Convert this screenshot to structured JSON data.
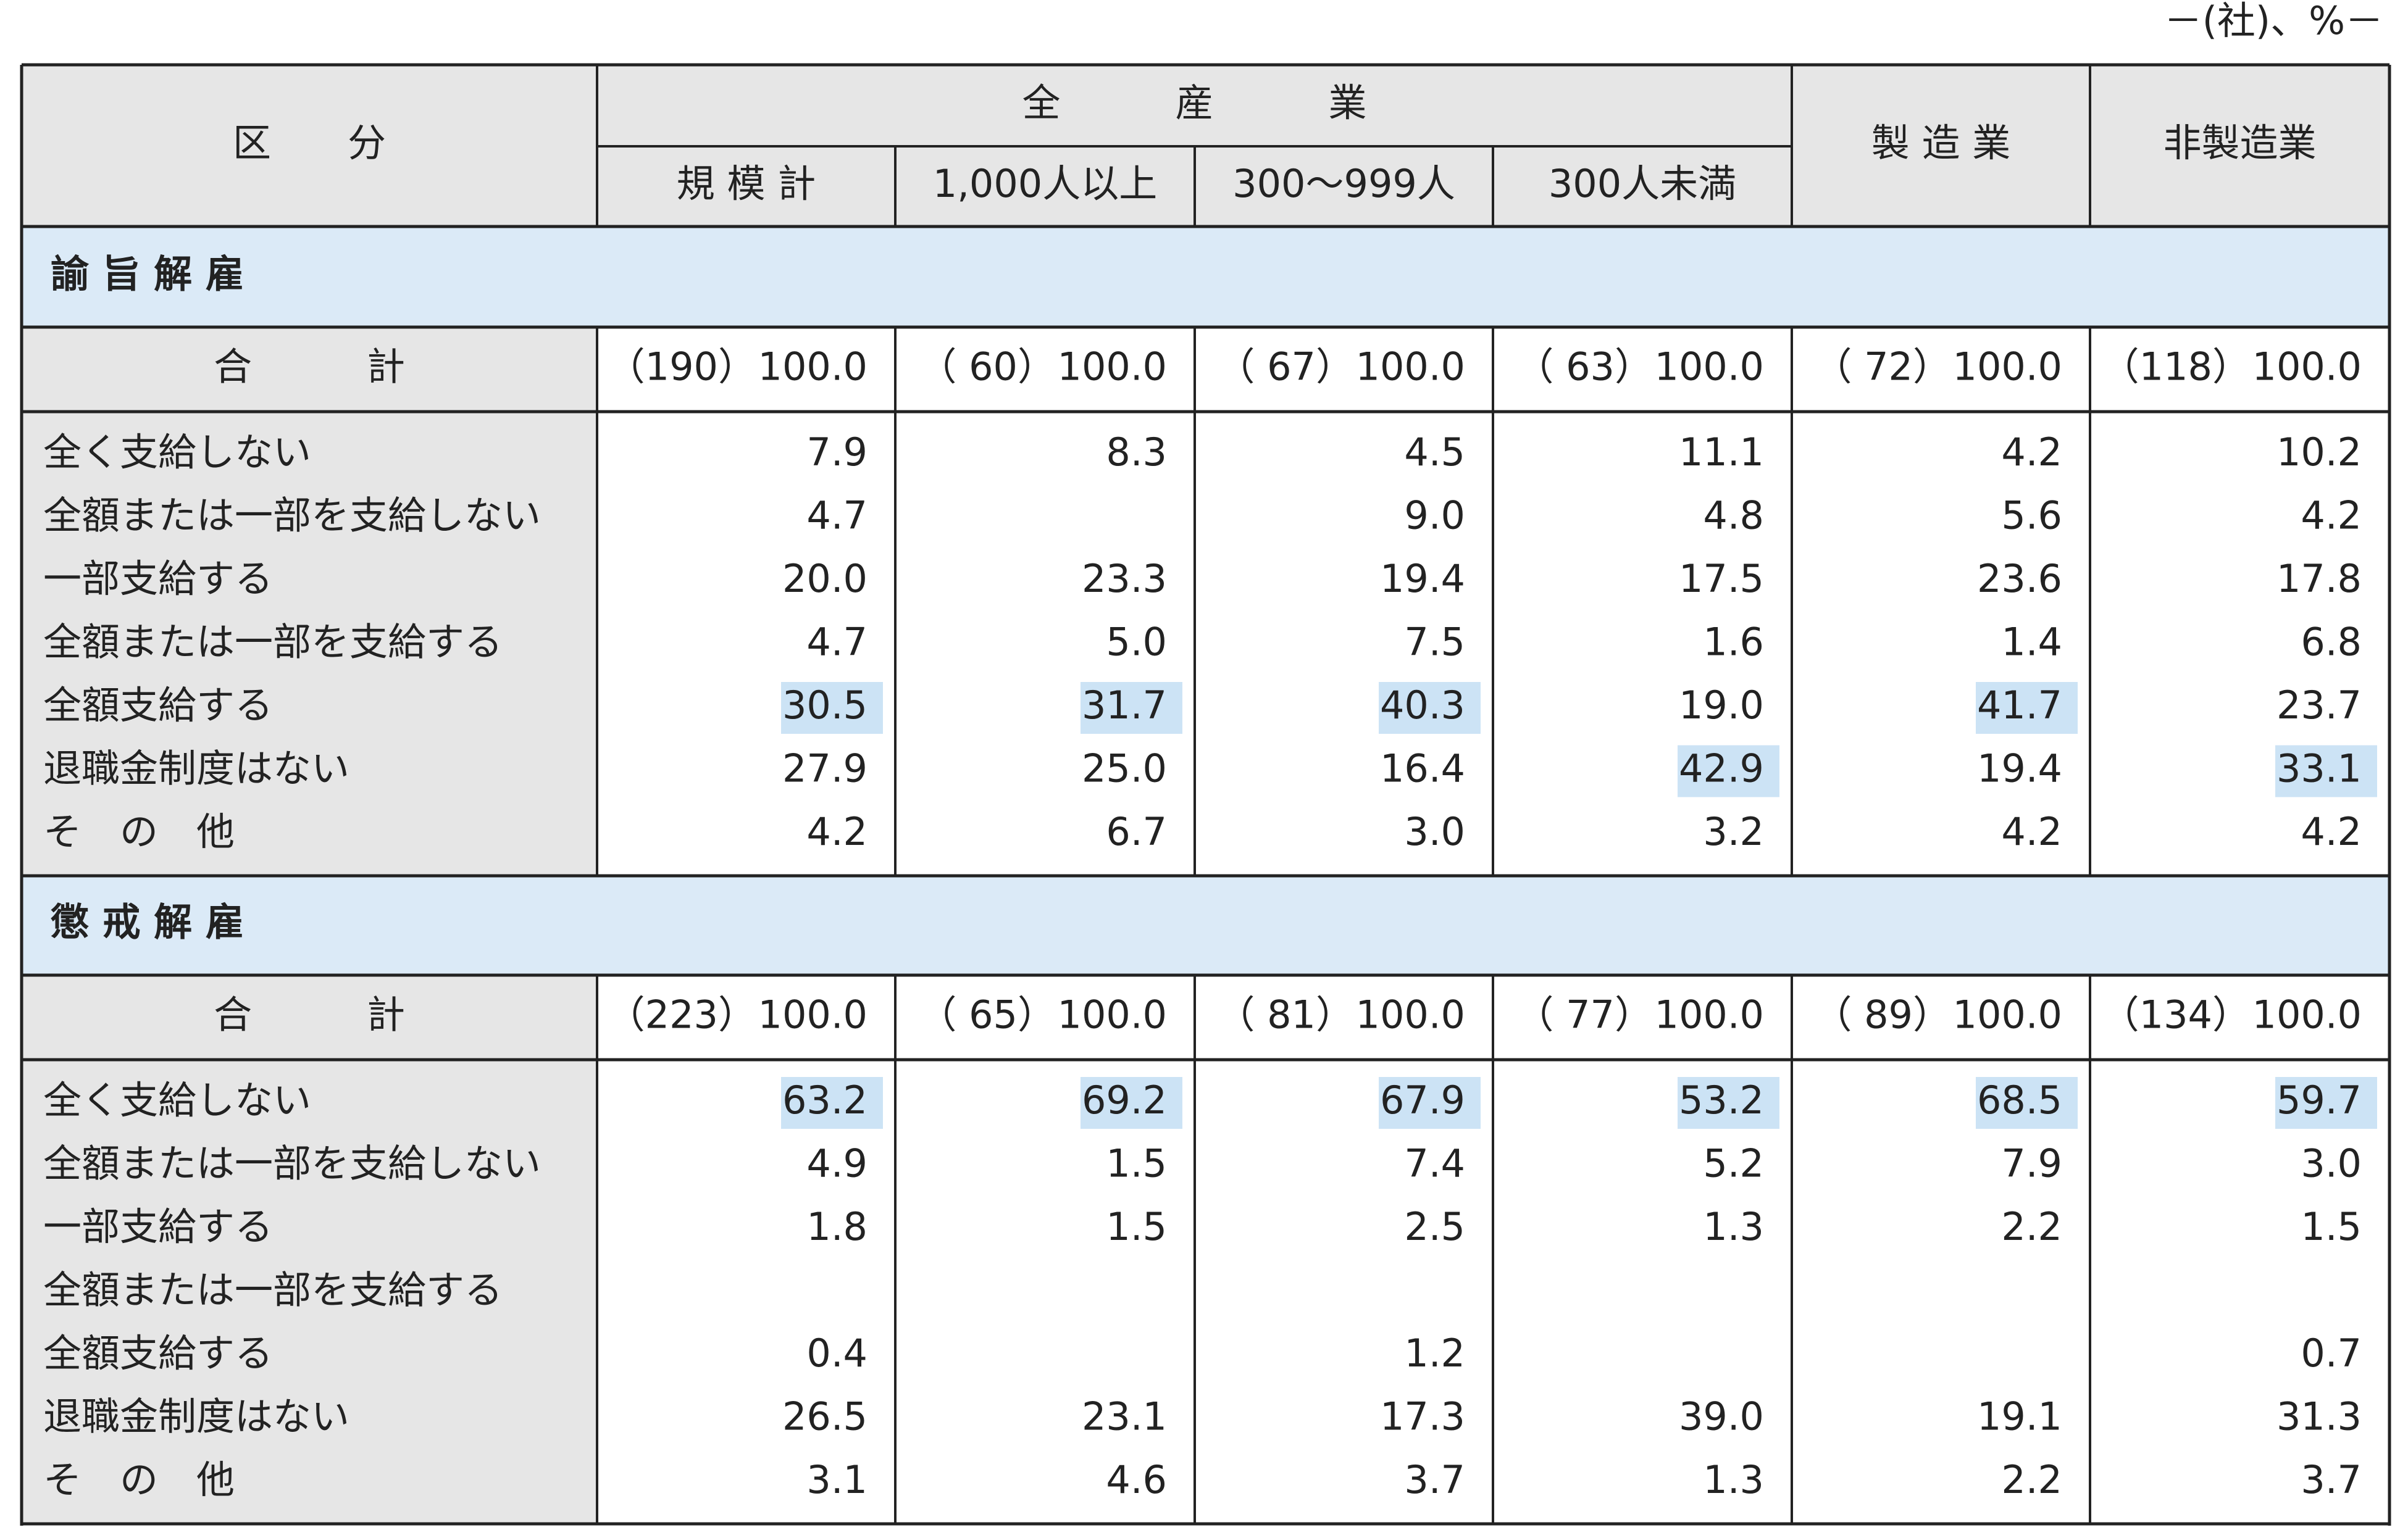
{
  "unit_note": "－(社)、%－",
  "header": {
    "category": "区　　分",
    "group": "全　　　産　　　業",
    "columns": [
      "規 模 計",
      "1,000人以上",
      "300～999人",
      "300人未満",
      "製 造 業",
      "非製造業"
    ]
  },
  "sections": [
    {
      "title": "諭 旨 解 雇",
      "total": {
        "label": "合　　　計",
        "counts": [
          "（190）",
          "（ 60）",
          "（ 67）",
          "（ 63）",
          "（ 72）",
          "（118）"
        ],
        "values": [
          "100.0",
          "100.0",
          "100.0",
          "100.0",
          "100.0",
          "100.0"
        ]
      },
      "rows": [
        {
          "label": "全く支給しない",
          "values": [
            "7.9",
            "8.3",
            "4.5",
            "11.1",
            "4.2",
            "10.2"
          ],
          "highlighted": []
        },
        {
          "label": "全額または一部を支給しない",
          "values": [
            "4.7",
            null,
            "9.0",
            "4.8",
            "5.6",
            "4.2"
          ],
          "highlighted": []
        },
        {
          "label": "一部支給する",
          "values": [
            "20.0",
            "23.3",
            "19.4",
            "17.5",
            "23.6",
            "17.8"
          ],
          "highlighted": []
        },
        {
          "label": "全額または一部を支給する",
          "values": [
            "4.7",
            "5.0",
            "7.5",
            "1.6",
            "1.4",
            "6.8"
          ],
          "highlighted": []
        },
        {
          "label": "全額支給する",
          "values": [
            "30.5",
            "31.7",
            "40.3",
            "19.0",
            "41.7",
            "23.7"
          ],
          "highlighted": [
            0,
            1,
            2,
            4
          ]
        },
        {
          "label": "退職金制度はない",
          "values": [
            "27.9",
            "25.0",
            "16.4",
            "42.9",
            "19.4",
            "33.1"
          ],
          "highlighted": [
            3,
            5
          ]
        },
        {
          "label": "そ　の　他",
          "values": [
            "4.2",
            "6.7",
            "3.0",
            "3.2",
            "4.2",
            "4.2"
          ],
          "highlighted": []
        }
      ]
    },
    {
      "title": "懲 戒 解 雇",
      "total": {
        "label": "合　　　計",
        "counts": [
          "（223）",
          "（ 65）",
          "（ 81）",
          "（ 77）",
          "（ 89）",
          "（134）"
        ],
        "values": [
          "100.0",
          "100.0",
          "100.0",
          "100.0",
          "100.0",
          "100.0"
        ]
      },
      "rows": [
        {
          "label": "全く支給しない",
          "values": [
            "63.2",
            "69.2",
            "67.9",
            "53.2",
            "68.5",
            "59.7"
          ],
          "highlighted": [
            0,
            1,
            2,
            3,
            4,
            5
          ]
        },
        {
          "label": "全額または一部を支給しない",
          "values": [
            "4.9",
            "1.5",
            "7.4",
            "5.2",
            "7.9",
            "3.0"
          ],
          "highlighted": []
        },
        {
          "label": "一部支給する",
          "values": [
            "1.8",
            "1.5",
            "2.5",
            "1.3",
            "2.2",
            "1.5"
          ],
          "highlighted": []
        },
        {
          "label": "全額または一部を支給する",
          "values": [
            null,
            null,
            null,
            null,
            null,
            null
          ],
          "highlighted": []
        },
        {
          "label": "全額支給する",
          "values": [
            "0.4",
            null,
            "1.2",
            null,
            null,
            "0.7"
          ],
          "highlighted": []
        },
        {
          "label": "退職金制度はない",
          "values": [
            "26.5",
            "23.1",
            "17.3",
            "39.0",
            "19.1",
            "31.3"
          ],
          "highlighted": []
        },
        {
          "label": "そ　の　他",
          "values": [
            "3.1",
            "4.6",
            "3.7",
            "1.3",
            "2.2",
            "3.7"
          ],
          "highlighted": []
        }
      ]
    }
  ]
}
